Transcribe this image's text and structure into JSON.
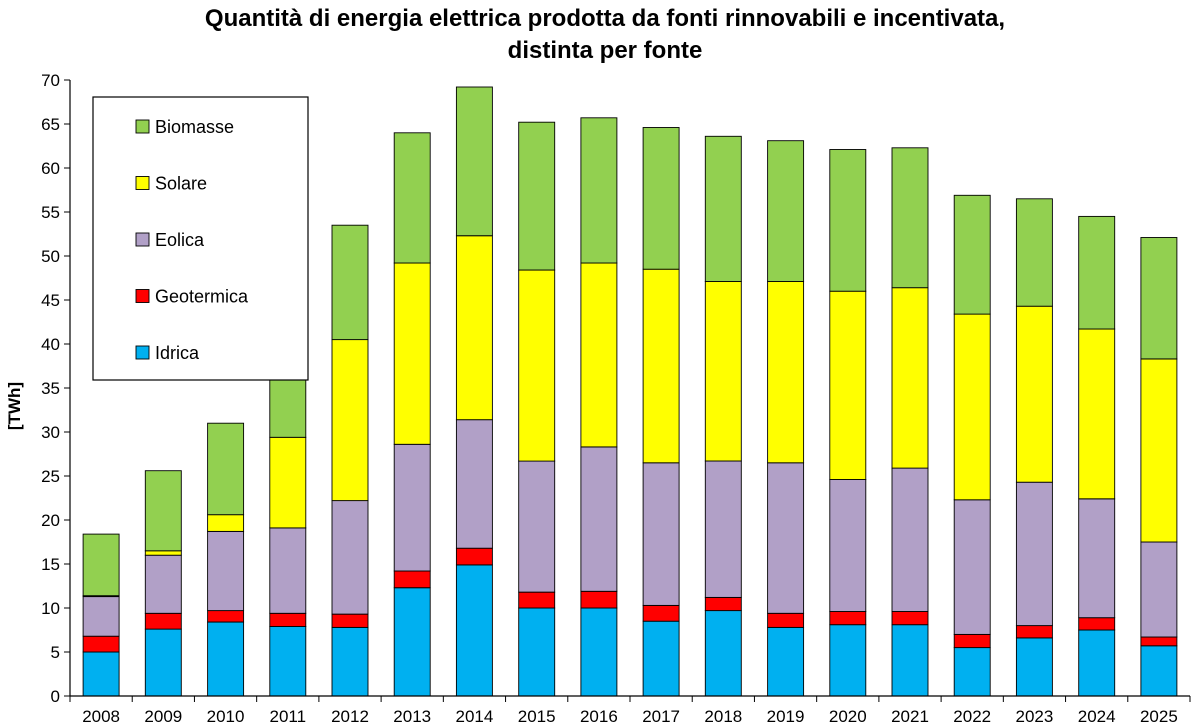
{
  "chart_data": {
    "type": "bar",
    "stacked": true,
    "title_line1": "Quantità di energia elettrica prodotta da fonti rinnovabili e incentivata,",
    "title_line2": "distinta per fonte",
    "xlabel": "",
    "ylabel": "[TWh]",
    "ylim": [
      0,
      70
    ],
    "ytick_step": 5,
    "yticks": [
      "0",
      "5",
      "10",
      "15",
      "20",
      "25",
      "30",
      "35",
      "40",
      "45",
      "50",
      "55",
      "60",
      "65",
      "70"
    ],
    "grid": false,
    "legend_position": "top-left",
    "categories": [
      "2008",
      "2009",
      "2010",
      "2011",
      "2012",
      "2013",
      "2014",
      "2015",
      "2016",
      "2017",
      "2018",
      "2019",
      "2020",
      "2021",
      "2022",
      "2023",
      "2024",
      "2025"
    ],
    "series": [
      {
        "name": "Idrica",
        "color": "#00B0F0",
        "values": [
          5.0,
          7.6,
          8.4,
          7.9,
          7.8,
          12.3,
          14.9,
          10.0,
          10.0,
          8.5,
          9.7,
          7.8,
          8.1,
          8.1,
          5.5,
          6.6,
          7.5,
          5.7
        ]
      },
      {
        "name": "Geotermica",
        "color": "#FF0000",
        "values": [
          1.8,
          1.8,
          1.3,
          1.5,
          1.5,
          1.9,
          1.9,
          1.8,
          1.9,
          1.8,
          1.5,
          1.6,
          1.5,
          1.5,
          1.5,
          1.4,
          1.4,
          1.0
        ]
      },
      {
        "name": "Eolica",
        "color": "#B1A0C7",
        "values": [
          4.5,
          6.6,
          9.0,
          9.7,
          12.9,
          14.4,
          14.6,
          14.9,
          16.4,
          16.2,
          15.5,
          17.1,
          15.0,
          16.3,
          15.3,
          16.3,
          13.5,
          10.8
        ]
      },
      {
        "name": "Solare",
        "color": "#FFFF00",
        "values": [
          0.1,
          0.5,
          1.9,
          10.3,
          18.3,
          20.6,
          20.9,
          21.7,
          20.9,
          22.0,
          20.4,
          20.6,
          21.4,
          20.5,
          21.1,
          20.0,
          19.3,
          20.8
        ]
      },
      {
        "name": "Biomasse",
        "color": "#92D050",
        "values": [
          7.0,
          9.1,
          10.4,
          9.0,
          13.0,
          14.8,
          16.9,
          16.8,
          16.5,
          16.1,
          16.5,
          16.0,
          16.1,
          15.9,
          13.5,
          12.2,
          12.8,
          13.8
        ]
      }
    ]
  }
}
